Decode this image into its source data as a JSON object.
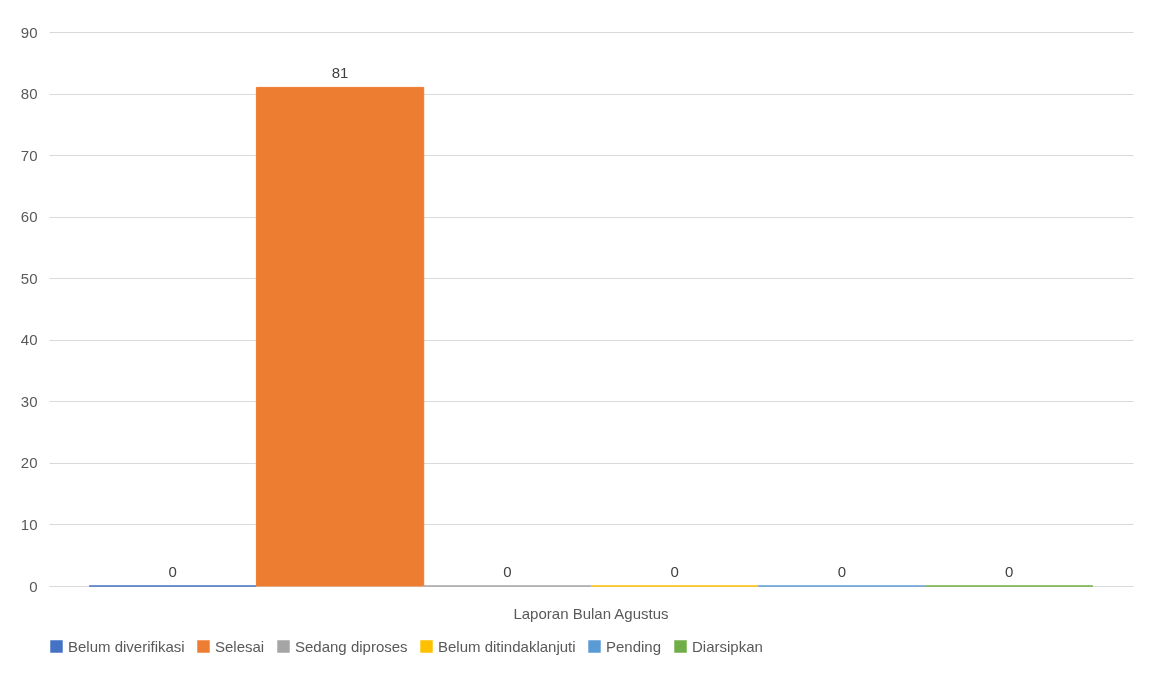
{
  "chart_data": {
    "type": "bar",
    "categories": [
      "Laporan Bulan Agustus"
    ],
    "series": [
      {
        "name": "Belum diverifikasi",
        "color": "#4472c4",
        "values": [
          0
        ]
      },
      {
        "name": "Selesai",
        "color": "#ed7d31",
        "values": [
          81
        ]
      },
      {
        "name": "Sedang diproses",
        "color": "#a5a5a5",
        "values": [
          0
        ]
      },
      {
        "name": "Belum ditindaklanjuti",
        "color": "#ffc000",
        "values": [
          0
        ]
      },
      {
        "name": "Pending",
        "color": "#5b9bd5",
        "values": [
          0
        ]
      },
      {
        "name": "Diarsipkan",
        "color": "#70ad47",
        "values": [
          0
        ]
      }
    ],
    "ylim": [
      0,
      90
    ],
    "yticks": [
      0,
      10,
      20,
      30,
      40,
      50,
      60,
      70,
      80,
      90
    ],
    "grid": "y",
    "legend": "bottom",
    "data_labels": true
  }
}
